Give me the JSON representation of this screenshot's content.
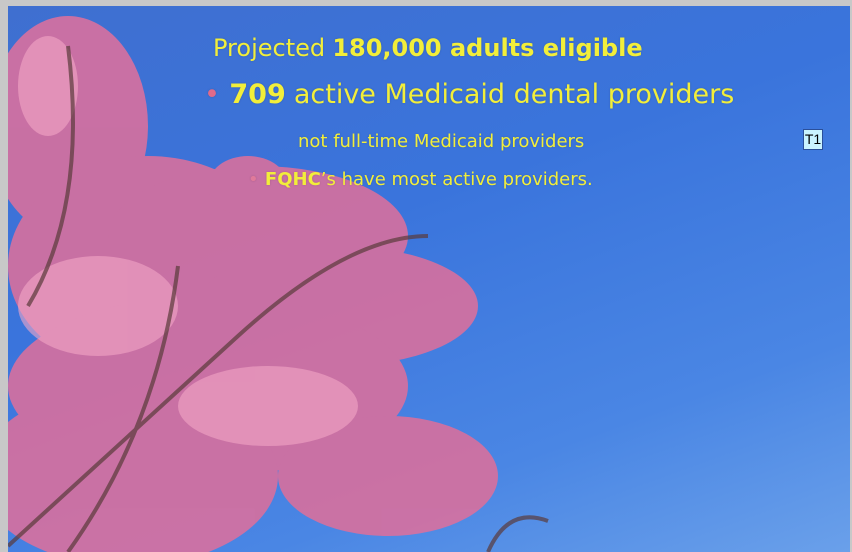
{
  "slide": {
    "lines": [
      {
        "parts": [
          "Projected",
          "180,000 adults eligible"
        ]
      },
      {
        "bullet": "•",
        "parts": [
          "709",
          "active Medicaid dental providers"
        ]
      },
      {
        "parts": [
          "not full-time Medicaid providers"
        ]
      },
      {
        "bullet": "•",
        "parts": [
          "FQHC",
          "’s have most active providers."
        ]
      }
    ],
    "comment_marker": "T1"
  }
}
